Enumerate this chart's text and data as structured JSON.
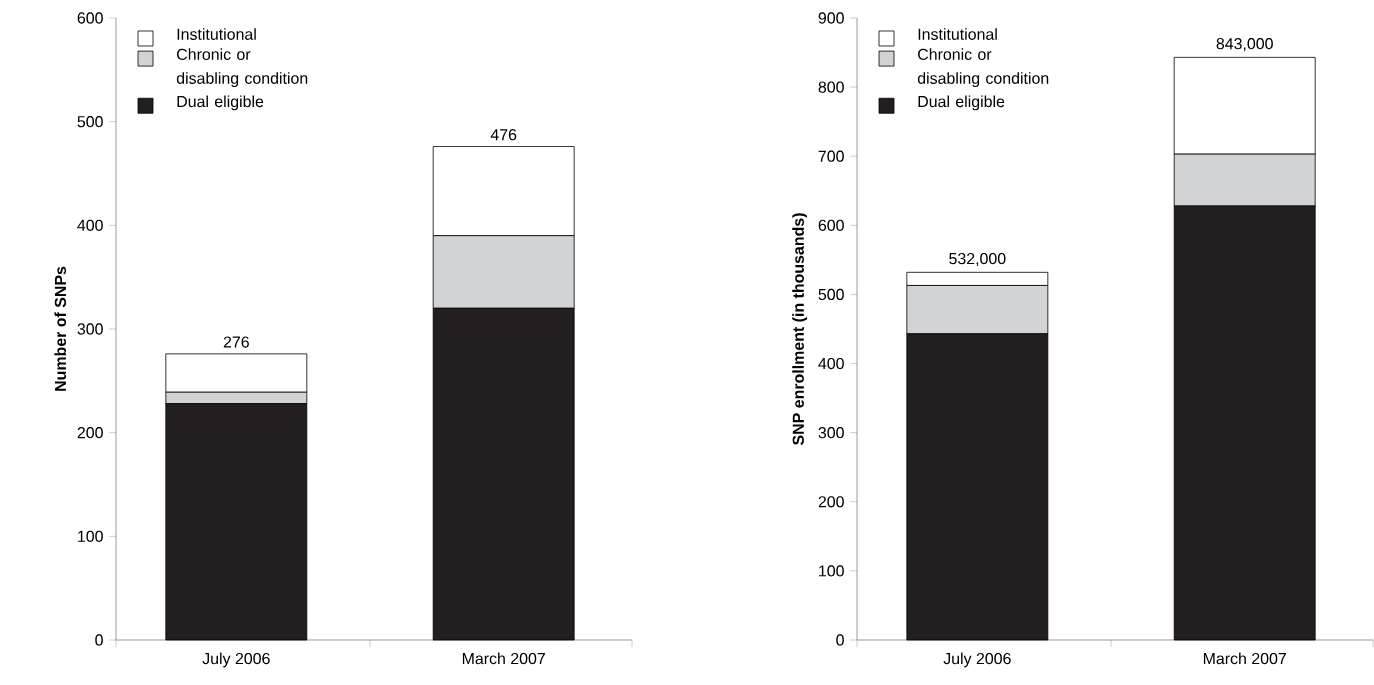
{
  "chart_data": [
    {
      "type": "bar",
      "stacked": true,
      "categories": [
        "July 2006",
        "March 2007"
      ],
      "ylabel": "Number of SNPs",
      "ylim": [
        0,
        600
      ],
      "yticks": [
        0,
        100,
        200,
        300,
        400,
        500,
        600
      ],
      "legend": "top left",
      "series": [
        {
          "name": "Dual eligible",
          "color": "#231f20",
          "values": [
            228,
            320
          ]
        },
        {
          "name": "Chronic or disabling condition",
          "color": "#d1d3d4",
          "values": [
            11,
            70
          ]
        },
        {
          "name": "Institutional",
          "color": "#ffffff",
          "values": [
            37,
            86
          ]
        }
      ],
      "totals": [
        "276",
        "476"
      ]
    },
    {
      "type": "bar",
      "stacked": true,
      "categories": [
        "July 2006",
        "March 2007"
      ],
      "ylabel": "SNP enrollment (in thousands)",
      "ylim": [
        0,
        900
      ],
      "yticks": [
        0,
        100,
        200,
        300,
        400,
        500,
        600,
        700,
        800,
        900
      ],
      "legend": "top left",
      "series": [
        {
          "name": "Dual eligible",
          "color": "#231f20",
          "values": [
            443,
            628
          ]
        },
        {
          "name": "Chronic or disabling condition",
          "color": "#d1d3d4",
          "values": [
            70,
            75
          ]
        },
        {
          "name": "Institutional",
          "color": "#ffffff",
          "values": [
            19,
            140
          ]
        }
      ],
      "totals": [
        "532,000",
        "843,000"
      ]
    }
  ]
}
